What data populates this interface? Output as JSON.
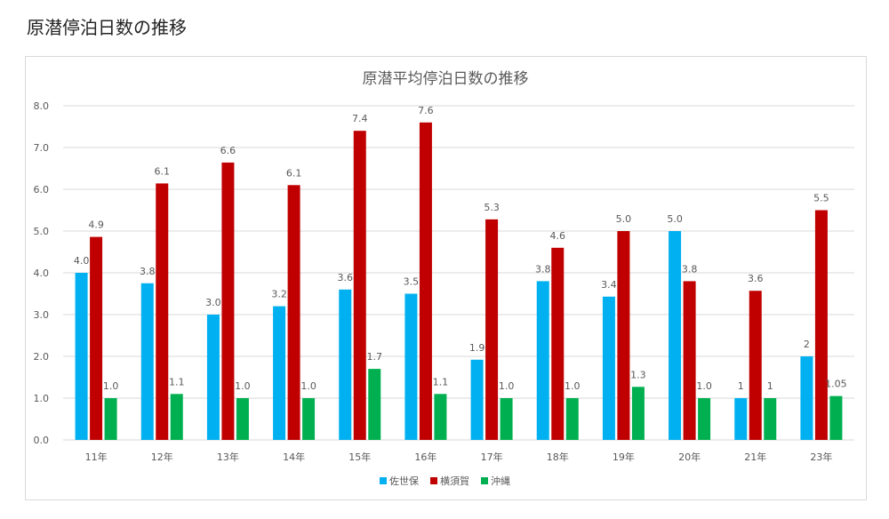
{
  "page": {
    "heading": "原潜停泊日数の推移"
  },
  "colors": {
    "sasebo": "#00B0F0",
    "yokosuka": "#C00000",
    "okinawa": "#00B050",
    "grid": "#D9D9D9",
    "text": "#595959"
  },
  "chart_data": {
    "type": "bar",
    "title": "原潜平均停泊日数の推移",
    "categories": [
      "11年",
      "12年",
      "13年",
      "14年",
      "15年",
      "16年",
      "17年",
      "18年",
      "19年",
      "20年",
      "21年",
      "23年"
    ],
    "series": [
      {
        "name": "佐世保",
        "values": [
          4.0,
          3.75,
          3.0,
          3.2,
          3.6,
          3.5,
          1.92,
          3.8,
          3.43,
          5.0,
          1.0,
          2.0
        ],
        "labels": [
          "4.0",
          "3.8",
          "3.0",
          "3.2",
          "3.6",
          "3.5",
          "1.9",
          "3.8",
          "3.4",
          "5.0",
          "1",
          "2"
        ]
      },
      {
        "name": "横須賀",
        "values": [
          4.86,
          6.14,
          6.64,
          6.1,
          7.4,
          7.6,
          5.28,
          4.6,
          5.0,
          3.8,
          3.57,
          5.5
        ],
        "labels": [
          "4.9",
          "6.1",
          "6.6",
          "6.1",
          "7.4",
          "7.6",
          "5.3",
          "4.6",
          "5.0",
          "3.8",
          "3.6",
          "5.5"
        ]
      },
      {
        "name": "沖縄",
        "values": [
          1.0,
          1.1,
          1.0,
          1.0,
          1.7,
          1.1,
          1.0,
          1.0,
          1.27,
          1.0,
          1.0,
          1.05
        ],
        "labels": [
          "1.0",
          "1.1",
          "1.0",
          "1.0",
          "1.7",
          "1.1",
          "1.0",
          "1.0",
          "1.3",
          "1.0",
          "1",
          "1.05"
        ]
      }
    ],
    "ylim": [
      0,
      8
    ],
    "yticks": [
      "0.0",
      "1.0",
      "2.0",
      "3.0",
      "4.0",
      "5.0",
      "6.0",
      "7.0",
      "8.0"
    ],
    "grid": true,
    "legend_position": "bottom-center"
  }
}
